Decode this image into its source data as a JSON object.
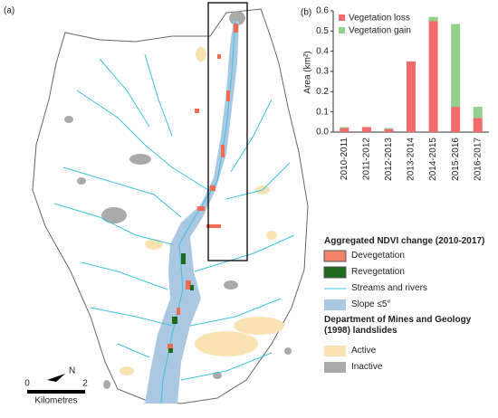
{
  "panel_a_label": "(a)",
  "map": {
    "legend_title": "Aggregated NDVI change (2010-2017)",
    "legend_items": [
      "Devegetation",
      "Revegetation",
      "Streams and rivers",
      "Slope ≤5°"
    ],
    "landslide_title": "Department of Mines and Geology (1998) landslides",
    "landslide_items": [
      "Active",
      "Inactive"
    ],
    "north_label": "N",
    "scale_start": "0",
    "scale_end": "2",
    "scale_unit": "Kilometres"
  },
  "chart_data": {
    "type": "stacked_bar",
    "panel_label": "(b)",
    "y_label": "Area (km²)",
    "categories": [
      "2010-2011",
      "2011-2012",
      "2012-2013",
      "2013-2014",
      "2014-2015",
      "2015-2016",
      "2016-2017"
    ],
    "series": [
      {
        "name": "Vegetation loss",
        "color": "#f26b6b",
        "values": [
          0.02,
          0.025,
          0.015,
          0.35,
          0.55,
          0.125,
          0.07
        ]
      },
      {
        "name": "Vegetation gain",
        "color": "#92d18c",
        "values": [
          0.005,
          0,
          0.005,
          0,
          0.02,
          0.41,
          0.055
        ]
      }
    ],
    "ylim": [
      0,
      0.6
    ],
    "yticks": [
      {
        "value": 0,
        "label": "0.0"
      },
      0.1,
      0.2,
      0.3,
      0.4,
      0.5,
      0.6
    ]
  }
}
